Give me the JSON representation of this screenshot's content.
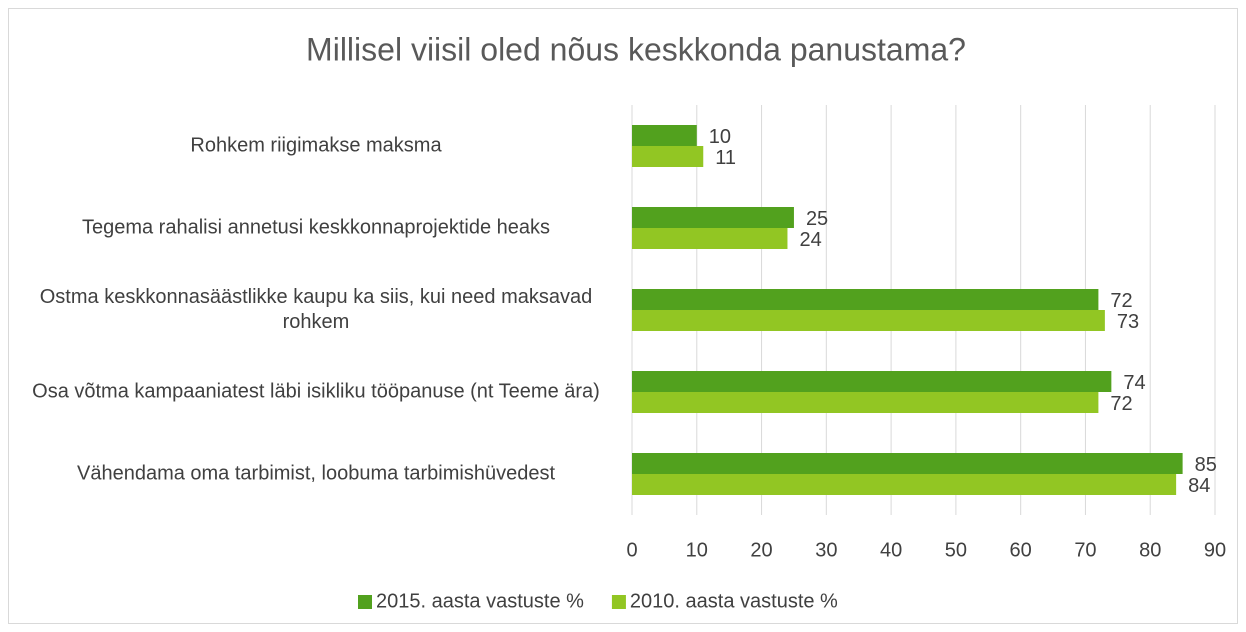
{
  "chart_data": {
    "type": "bar",
    "orientation": "horizontal",
    "title": "Millisel viisil oled nõus keskkonda panustama?",
    "categories": [
      "Rohkem riigimakse maksma",
      "Tegema rahalisi annetusi keskkonnaprojektide heaks",
      "Ostma keskkonnasäästlikke kaupu ka siis, kui need maksavad rohkem",
      "Osa võtma kampaaniatest läbi isikliku tööpanuse (nt Teeme ära)",
      "Vähendama oma tarbimist, loobuma tarbimishüvedest"
    ],
    "series": [
      {
        "name": "2015. aasta vastuste %",
        "color": "#52a11e",
        "values": [
          10,
          25,
          72,
          74,
          85
        ]
      },
      {
        "name": "2010. aasta vastuste %",
        "color": "#92c623",
        "values": [
          11,
          24,
          73,
          72,
          84
        ]
      }
    ],
    "xlim": [
      0,
      90
    ],
    "xticks": [
      0,
      10,
      20,
      30,
      40,
      50,
      60,
      70,
      80,
      90
    ],
    "grid": true,
    "legend": "bottom"
  }
}
